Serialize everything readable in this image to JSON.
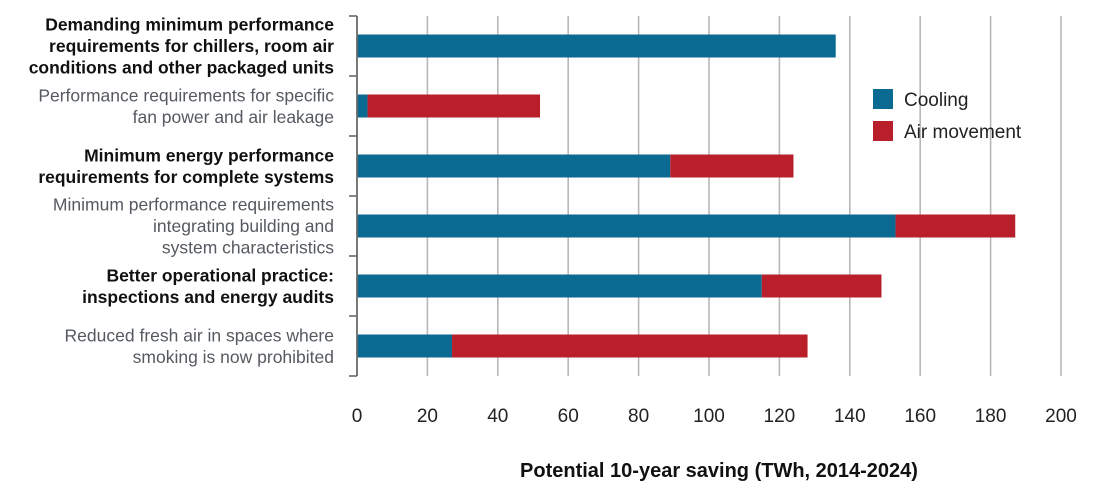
{
  "chart_data": {
    "type": "bar",
    "orientation": "horizontal",
    "stacked": true,
    "categories": [
      [
        "Demanding minimum performance",
        "requirements for chillers, room air",
        "conditions and other packaged units"
      ],
      [
        "Performance requirements for specific",
        "fan power and air leakage"
      ],
      [
        "Minimum energy performance",
        "requirements for complete systems"
      ],
      [
        "Minimum performance requirements",
        "integrating building and",
        "system characteristics"
      ],
      [
        "Better operational practice:",
        "inspections and energy audits"
      ],
      [
        "Reduced fresh air in spaces where",
        "smoking is now prohibited"
      ]
    ],
    "category_bold": [
      true,
      false,
      true,
      false,
      true,
      false
    ],
    "series": [
      {
        "name": "Cooling",
        "color": "#0a6a92",
        "values": [
          136,
          3,
          89,
          153,
          115,
          27
        ]
      },
      {
        "name": "Air movement",
        "color": "#b81f2a",
        "values": [
          0,
          49,
          35,
          34,
          34,
          101
        ]
      }
    ],
    "xlabel": "Potential 10-year saving (TWh, 2014-2024)",
    "xlim": [
      0,
      200
    ],
    "xticks": [
      0,
      20,
      40,
      60,
      80,
      100,
      120,
      140,
      160,
      180,
      200
    ],
    "grid": true,
    "legend_position": "top-right"
  }
}
